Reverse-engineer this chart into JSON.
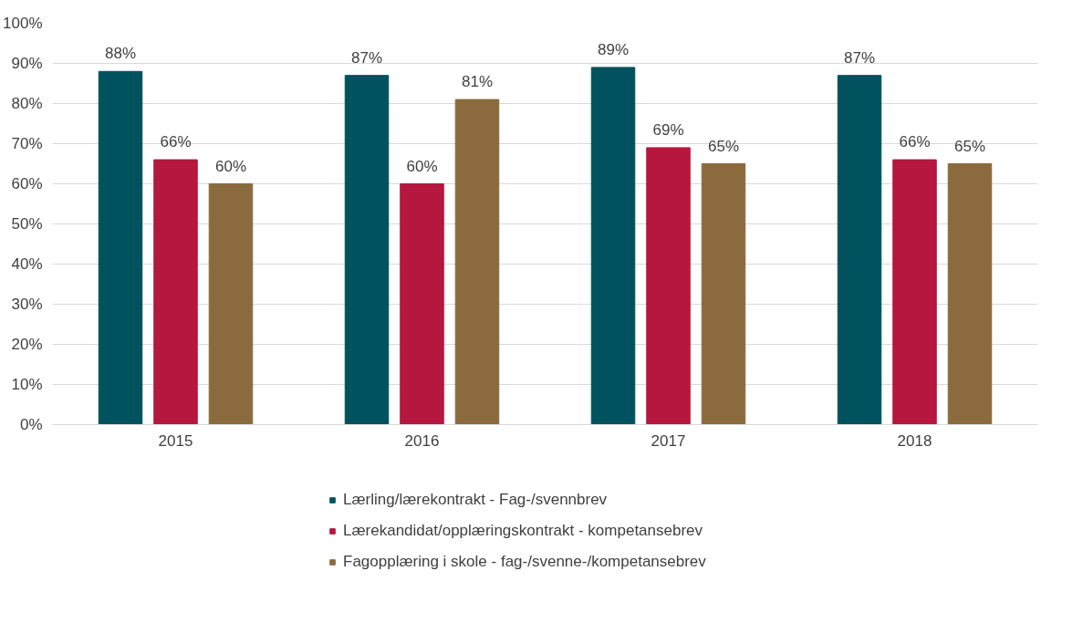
{
  "chart_data": {
    "type": "bar",
    "categories": [
      "2015",
      "2016",
      "2017",
      "2018"
    ],
    "series": [
      {
        "name": "Lærling/lærekontrakt - Fag-/svennbrev",
        "color": "#00525e",
        "values": [
          88,
          87,
          89,
          87
        ],
        "value_labels": [
          "88%",
          "87%",
          "89%",
          "87%"
        ]
      },
      {
        "name": "Lærekandidat/opplæringskontrakt - kompetansebrev",
        "color": "#b5173f",
        "values": [
          66,
          60,
          69,
          66
        ],
        "value_labels": [
          "66%",
          "60%",
          "69%",
          "66%"
        ]
      },
      {
        "name": "Fagopplæring i skole - fag-/svenne-/kompetansebrev",
        "color": "#8b6b3d",
        "values": [
          60,
          81,
          65,
          65
        ],
        "value_labels": [
          "60%",
          "81%",
          "65%",
          "65%"
        ]
      }
    ],
    "ylim": [
      0,
      100
    ],
    "yticks": [
      {
        "value": 0,
        "label": "0%"
      },
      {
        "value": 10,
        "label": "10%"
      },
      {
        "value": 20,
        "label": "20%"
      },
      {
        "value": 30,
        "label": "30%"
      },
      {
        "value": 40,
        "label": "40%"
      },
      {
        "value": 50,
        "label": "50%"
      },
      {
        "value": 60,
        "label": "60%"
      },
      {
        "value": 70,
        "label": "70%"
      },
      {
        "value": 80,
        "label": "80%"
      },
      {
        "value": 90,
        "label": "90%"
      },
      {
        "value": 100,
        "label": "100%"
      }
    ],
    "grid": "y",
    "legend": "bottom"
  }
}
